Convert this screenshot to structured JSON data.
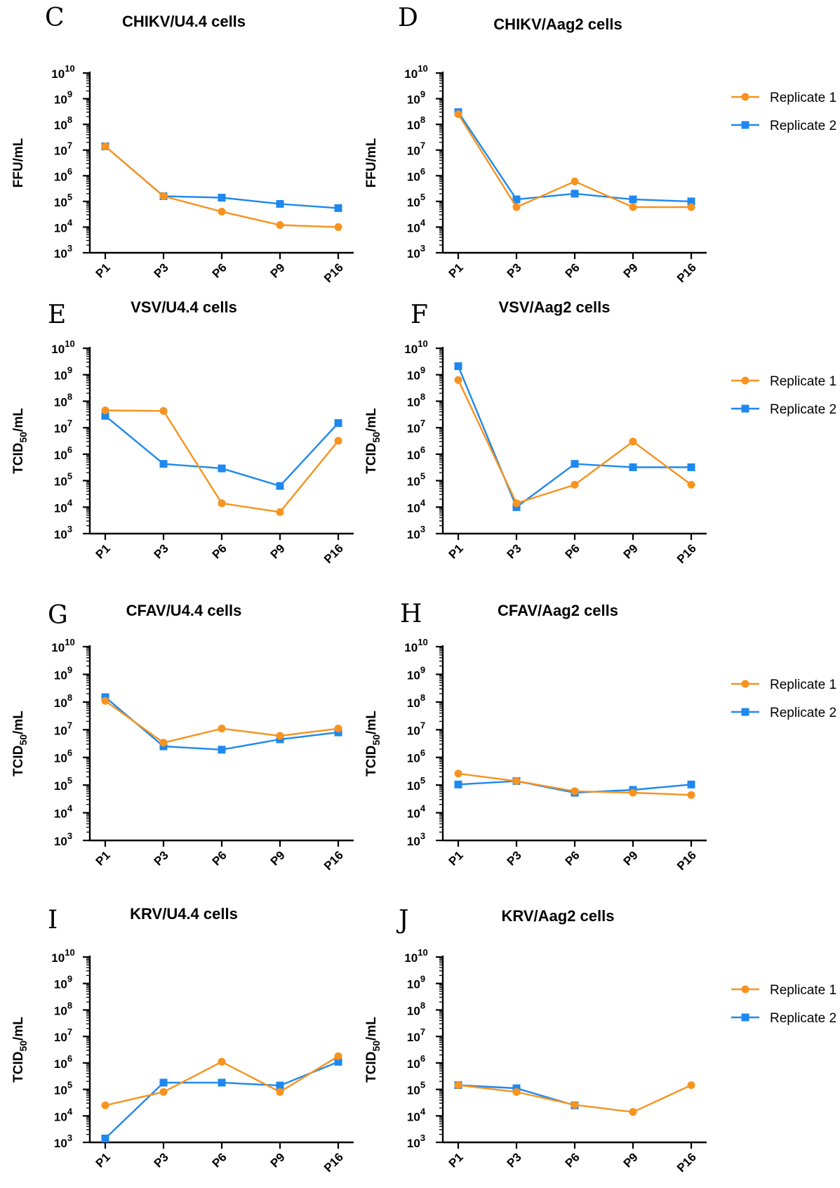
{
  "colors": {
    "replicate1": "#f7931e",
    "replicate2": "#1e88f0",
    "axis": "#000000"
  },
  "legend_entries": [
    "Replicate 1",
    "Replicate 2"
  ],
  "chart_data": [
    {
      "panel": "C",
      "type": "line",
      "title": "CHIKV/U4.4 cells",
      "ylabel_main": "FFU/mL",
      "ylabel_sub": "",
      "ylabel_tail": "",
      "yscale": "log",
      "ylim": [
        1000.0,
        10000000000.0
      ],
      "yticks": [
        3,
        4,
        5,
        6,
        7,
        8,
        9,
        10
      ],
      "categories": [
        "P1",
        "P3",
        "P6",
        "P9",
        "P16"
      ],
      "show_legend": false,
      "series": [
        {
          "name": "Replicate 1",
          "values": [
            14000000.0,
            160000.0,
            40000.0,
            12000.0,
            10000.0
          ]
        },
        {
          "name": "Replicate 2",
          "values": [
            14000000.0,
            160000.0,
            140000.0,
            80000.0,
            55000.0
          ]
        }
      ]
    },
    {
      "panel": "D",
      "type": "line",
      "title": "CHIKV/Aag2 cells",
      "ylabel_main": "FFU/mL",
      "ylabel_sub": "",
      "ylabel_tail": "",
      "yscale": "log",
      "ylim": [
        1000.0,
        10000000000.0
      ],
      "yticks": [
        3,
        4,
        5,
        6,
        7,
        8,
        9,
        10
      ],
      "categories": [
        "P1",
        "P3",
        "P6",
        "P9",
        "P16"
      ],
      "show_legend": true,
      "series": [
        {
          "name": "Replicate 1",
          "values": [
            250000000.0,
            60000.0,
            600000.0,
            60000.0,
            60000.0
          ]
        },
        {
          "name": "Replicate 2",
          "values": [
            300000000.0,
            120000.0,
            200000.0,
            120000.0,
            100000.0
          ]
        }
      ]
    },
    {
      "panel": "E",
      "type": "line",
      "title": "VSV/U4.4 cells",
      "ylabel_main": "TCID",
      "ylabel_sub": "50",
      "ylabel_tail": "/mL",
      "yscale": "log",
      "ylim": [
        1000.0,
        10000000000.0
      ],
      "yticks": [
        3,
        4,
        5,
        6,
        7,
        8,
        9,
        10
      ],
      "categories": [
        "P1",
        "P3",
        "P6",
        "P9",
        "P16"
      ],
      "show_legend": false,
      "series": [
        {
          "name": "Replicate 1",
          "values": [
            45000000.0,
            43000000.0,
            14000.0,
            6500.0,
            3200000.0
          ]
        },
        {
          "name": "Replicate 2",
          "values": [
            28000000.0,
            430000.0,
            290000.0,
            63000.0,
            15000000.0
          ]
        }
      ]
    },
    {
      "panel": "F",
      "type": "line",
      "title": "VSV/Aag2 cells",
      "ylabel_main": "TCID",
      "ylabel_sub": "50",
      "ylabel_tail": "/mL",
      "yscale": "log",
      "ylim": [
        1000.0,
        10000000000.0
      ],
      "yticks": [
        3,
        4,
        5,
        6,
        7,
        8,
        9,
        10
      ],
      "categories": [
        "P1",
        "P3",
        "P6",
        "P9",
        "P16"
      ],
      "show_legend": true,
      "series": [
        {
          "name": "Replicate 1",
          "values": [
            630000000.0,
            14000.0,
            70000.0,
            3000000.0,
            70000.0
          ]
        },
        {
          "name": "Replicate 2",
          "values": [
            2100000000.0,
            10000.0,
            430000.0,
            320000.0,
            320000.0
          ]
        }
      ]
    },
    {
      "panel": "G",
      "type": "line",
      "title": "CFAV/U4.4 cells",
      "ylabel_main": "TCID",
      "ylabel_sub": "50",
      "ylabel_tail": "/mL",
      "yscale": "log",
      "ylim": [
        1000.0,
        10000000000.0
      ],
      "yticks": [
        3,
        4,
        5,
        6,
        7,
        8,
        9,
        10
      ],
      "categories": [
        "P1",
        "P3",
        "P6",
        "P9",
        "P16"
      ],
      "show_legend": false,
      "series": [
        {
          "name": "Replicate 1",
          "values": [
            110000000.0,
            3400000.0,
            11000000.0,
            6000000.0,
            11000000.0
          ]
        },
        {
          "name": "Replicate 2",
          "values": [
            150000000.0,
            2500000.0,
            1900000.0,
            4500000.0,
            8000000.0
          ]
        }
      ]
    },
    {
      "panel": "H",
      "type": "line",
      "title": "CFAV/Aag2 cells",
      "ylabel_main": "TCID",
      "ylabel_sub": "50",
      "ylabel_tail": "/mL",
      "yscale": "log",
      "ylim": [
        1000.0,
        10000000000.0
      ],
      "yticks": [
        3,
        4,
        5,
        6,
        7,
        8,
        9,
        10
      ],
      "categories": [
        "P1",
        "P3",
        "P6",
        "P9",
        "P16"
      ],
      "show_legend": true,
      "series": [
        {
          "name": "Replicate 1",
          "values": [
            260000.0,
            140000.0,
            60000.0,
            53000.0,
            44000.0
          ]
        },
        {
          "name": "Replicate 2",
          "values": [
            105000.0,
            140000.0,
            53000.0,
            67000.0,
            105000.0
          ]
        }
      ]
    },
    {
      "panel": "I",
      "type": "line",
      "title": "KRV/U4.4 cells",
      "ylabel_main": "TCID",
      "ylabel_sub": "50",
      "ylabel_tail": "/mL",
      "yscale": "log",
      "ylim": [
        1000.0,
        10000000000.0
      ],
      "yticks": [
        3,
        4,
        5,
        6,
        7,
        8,
        9,
        10
      ],
      "categories": [
        "P1",
        "P3",
        "P6",
        "P9",
        "P16"
      ],
      "show_legend": false,
      "series": [
        {
          "name": "Replicate 1",
          "values": [
            25000.0,
            80000.0,
            1100000.0,
            80000.0,
            1800000.0
          ]
        },
        {
          "name": "Replicate 2",
          "values": [
            1400.0,
            180000.0,
            180000.0,
            140000.0,
            1100000.0
          ]
        }
      ]
    },
    {
      "panel": "J",
      "type": "line",
      "title": "KRV/Aag2 cells",
      "ylabel_main": "TCID",
      "ylabel_sub": "50",
      "ylabel_tail": "/mL",
      "yscale": "log",
      "ylim": [
        1000.0,
        10000000000.0
      ],
      "yticks": [
        3,
        4,
        5,
        6,
        7,
        8,
        9,
        10
      ],
      "categories": [
        "P1",
        "P3",
        "P6",
        "P9",
        "P16"
      ],
      "show_legend": true,
      "series": [
        {
          "name": "Replicate 1",
          "values": [
            145000.0,
            80000.0,
            26000.0,
            14000.0,
            145000.0
          ]
        },
        {
          "name": "Replicate 2",
          "values": [
            145000.0,
            110000.0,
            25000.0,
            null,
            null
          ]
        }
      ]
    }
  ]
}
